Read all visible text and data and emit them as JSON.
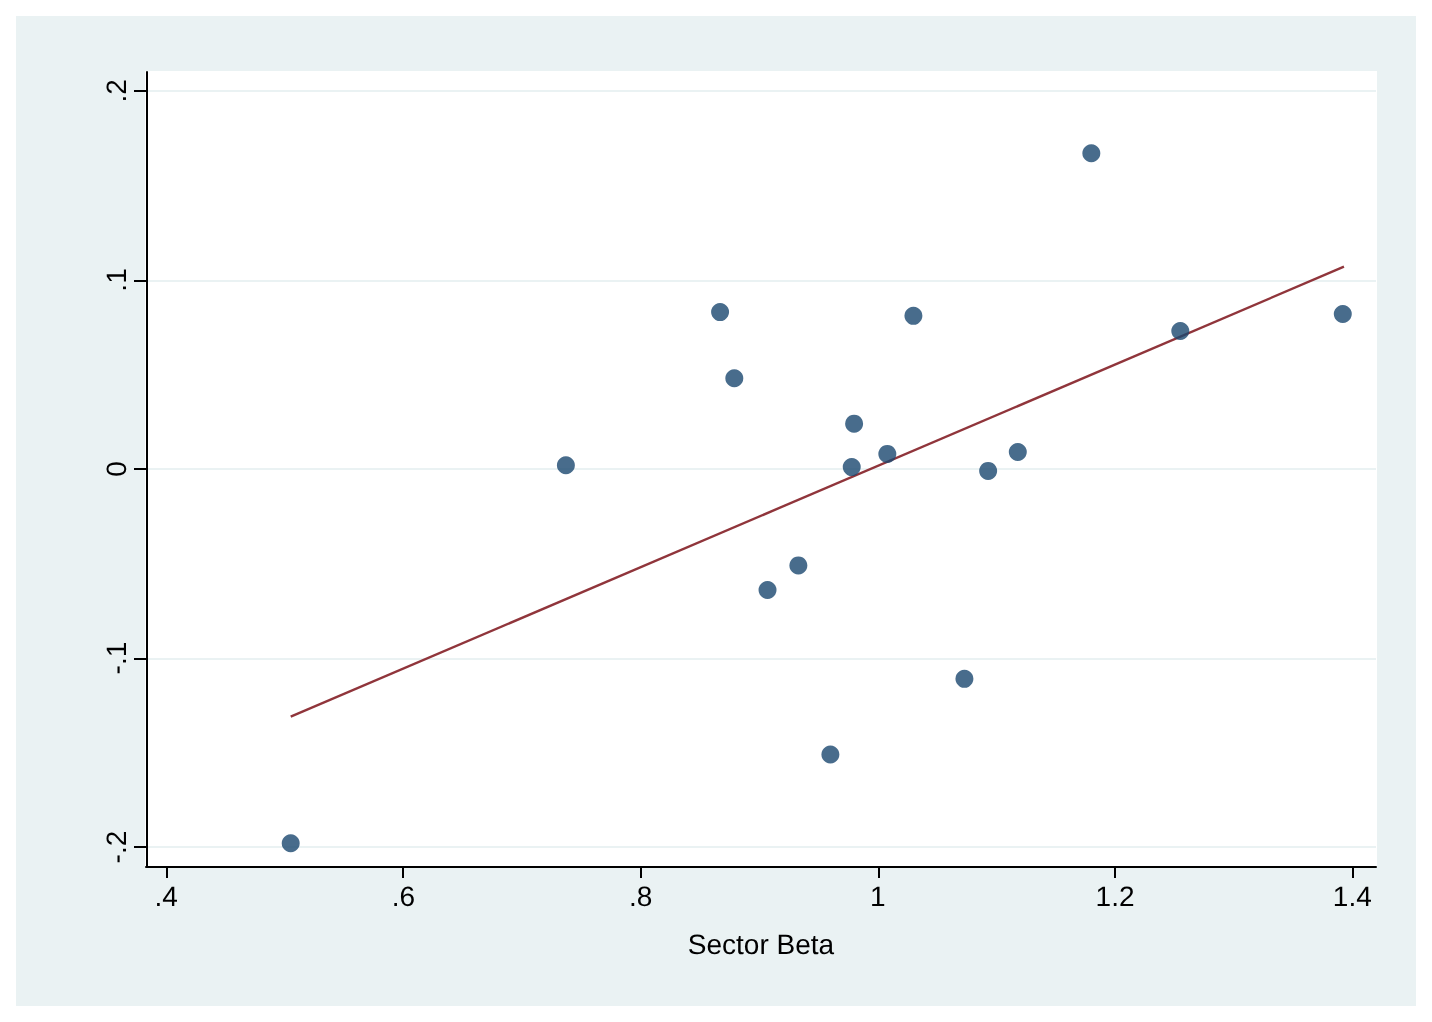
{
  "chart_data": {
    "type": "scatter",
    "xlabel": "Sector Beta",
    "xlim": [
      0.383,
      1.42
    ],
    "xticks": [
      {
        "value": 0.4,
        "label": ".4"
      },
      {
        "value": 0.6,
        "label": ".6"
      },
      {
        "value": 0.8,
        "label": ".8"
      },
      1,
      1.2,
      1.4
    ],
    "ylim": [
      -0.21,
      0.21
    ],
    "yticks": [
      {
        "value": -0.2,
        "label": "-.2"
      },
      {
        "value": -0.1,
        "label": "-.1"
      },
      0,
      {
        "value": 0.1,
        "label": ".1"
      },
      {
        "value": 0.2,
        "label": ".2"
      }
    ],
    "grid": "y",
    "marker": "circle",
    "series": [
      {
        "type": "scatter",
        "color": "#1a476f",
        "x": [
          0.505,
          0.737,
          0.867,
          0.879,
          0.907,
          0.933,
          0.96,
          0.98,
          0.978,
          1.008,
          1.03,
          1.073,
          1.093,
          1.118,
          1.18,
          1.255,
          1.392
        ],
        "values": [
          -0.198,
          0.002,
          0.083,
          0.048,
          -0.064,
          -0.051,
          -0.151,
          0.024,
          0.001,
          0.008,
          0.081,
          -0.111,
          -0.001,
          0.009,
          0.167,
          0.073,
          0.082
        ]
      },
      {
        "type": "line",
        "color": "#90353b",
        "marker": "none",
        "x": [
          0.505,
          1.393
        ],
        "values": [
          -0.131,
          0.107
        ]
      }
    ]
  }
}
